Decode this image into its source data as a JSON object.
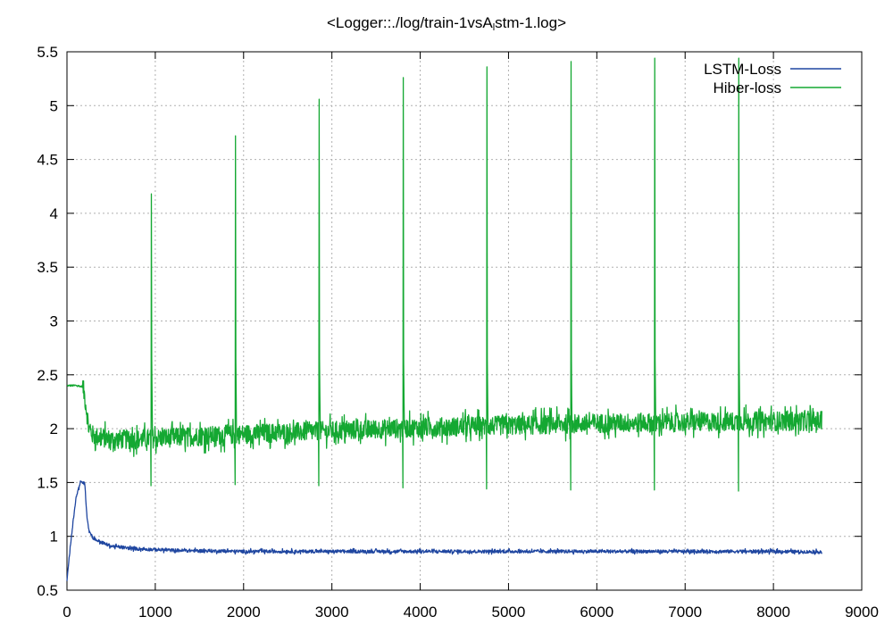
{
  "chart_data": {
    "type": "line",
    "title": {
      "before_subscript": "<Logger::./log/train-1vsA",
      "subscript": "l",
      "after_subscript": "stm-1.log>"
    },
    "xlabel": "",
    "ylabel": "",
    "xlim": [
      0,
      9000
    ],
    "ylim": [
      0.5,
      5.5
    ],
    "x_ticks": [
      0,
      1000,
      2000,
      3000,
      4000,
      5000,
      6000,
      7000,
      8000,
      9000
    ],
    "y_ticks": [
      0.5,
      1,
      1.5,
      2,
      2.5,
      3,
      3.5,
      4,
      4.5,
      5,
      5.5
    ],
    "y_tick_labels": [
      "0.5",
      "1",
      "1.5",
      "2",
      "2.5",
      "3",
      "3.5",
      "4",
      "4.5",
      "5",
      "5.5"
    ],
    "grid": true,
    "legend_position": "top-right",
    "series": [
      {
        "name": "LSTM-Loss",
        "color": "#1f46a0",
        "x": [
          0,
          50,
          100,
          150,
          200,
          225,
          250,
          300,
          400,
          500,
          700,
          900,
          1200,
          1600,
          2000,
          3000,
          4000,
          5000,
          6000,
          7000,
          8000,
          8550
        ],
        "y": [
          0.6,
          1.0,
          1.35,
          1.5,
          1.5,
          1.2,
          1.05,
          0.98,
          0.94,
          0.91,
          0.89,
          0.88,
          0.87,
          0.865,
          0.86,
          0.86,
          0.86,
          0.86,
          0.86,
          0.86,
          0.86,
          0.855
        ],
        "noise_amplitude": 0.015
      },
      {
        "name": "Hiber-loss",
        "color": "#14a832",
        "x": [
          0,
          100,
          180,
          200,
          250,
          300,
          500,
          800,
          1000,
          1500,
          2000,
          3000,
          4000,
          5000,
          6000,
          7000,
          8000,
          8550
        ],
        "y": [
          2.4,
          2.4,
          2.39,
          2.3,
          2.0,
          1.93,
          1.9,
          1.9,
          1.91,
          1.93,
          1.95,
          1.98,
          2.01,
          2.03,
          2.05,
          2.06,
          2.07,
          2.07
        ],
        "noise_amplitude": 0.09,
        "spikes": [
          {
            "x": 960,
            "peak": 4.18,
            "dip": 1.47
          },
          {
            "x": 1910,
            "peak": 4.72,
            "dip": 1.48
          },
          {
            "x": 2860,
            "peak": 5.06,
            "dip": 1.47
          },
          {
            "x": 3810,
            "peak": 5.26,
            "dip": 1.45
          },
          {
            "x": 4760,
            "peak": 5.36,
            "dip": 1.44
          },
          {
            "x": 5710,
            "peak": 5.41,
            "dip": 1.43
          },
          {
            "x": 6660,
            "peak": 5.44,
            "dip": 1.43
          },
          {
            "x": 7610,
            "peak": 5.44,
            "dip": 1.42
          }
        ]
      }
    ]
  }
}
